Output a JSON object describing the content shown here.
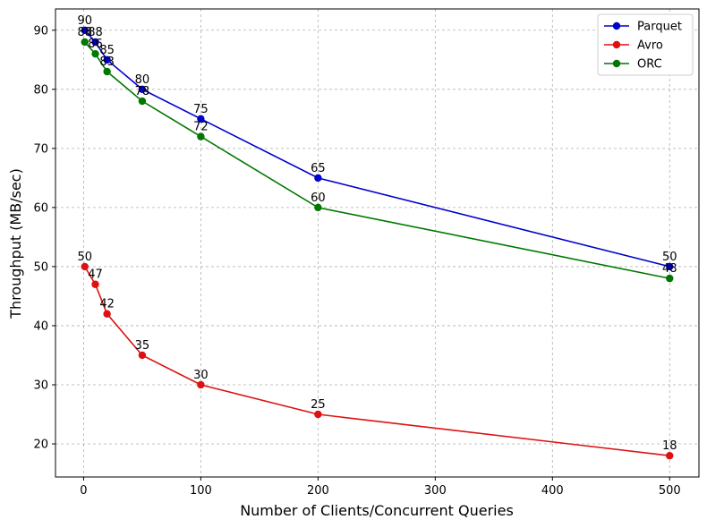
{
  "chart_data": {
    "type": "line",
    "title": "",
    "xlabel": "Number of Clients/Concurrent Queries",
    "ylabel": "Throughput (MB/sec)",
    "xlim": [
      -24,
      525
    ],
    "ylim": [
      14.4,
      93.6
    ],
    "xticks": [
      0,
      100,
      200,
      300,
      400,
      500
    ],
    "yticks": [
      20,
      30,
      40,
      50,
      60,
      70,
      80,
      90
    ],
    "grid": true,
    "legend_position": "top-right",
    "x": [
      1,
      10,
      20,
      50,
      100,
      200,
      500
    ],
    "series": [
      {
        "name": "Parquet",
        "color": "#0000cc",
        "values": [
          90,
          88,
          85,
          80,
          75,
          65,
          50
        ]
      },
      {
        "name": "Avro",
        "color": "#dd1111",
        "values": [
          50,
          47,
          42,
          35,
          30,
          25,
          18
        ]
      },
      {
        "name": "ORC",
        "color": "#007700",
        "values": [
          88,
          86,
          83,
          78,
          72,
          60,
          48
        ]
      }
    ]
  }
}
